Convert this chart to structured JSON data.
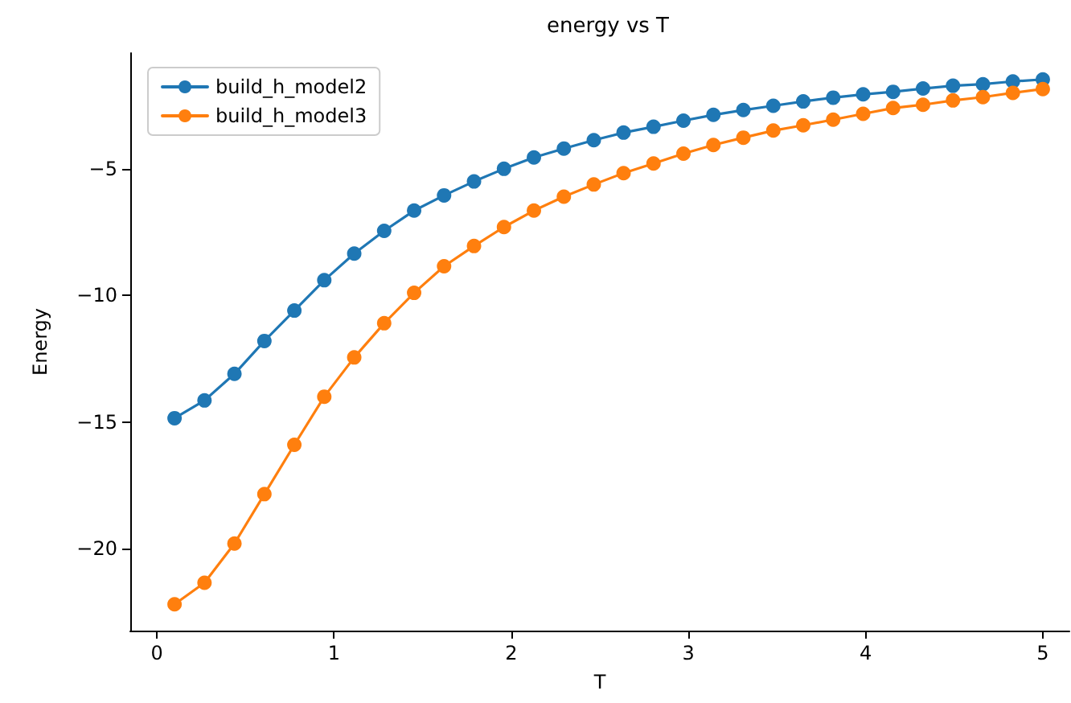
{
  "chart_data": {
    "type": "line",
    "title": "energy vs T",
    "xlabel": "T",
    "ylabel": "Energy",
    "x": [
      0.1,
      0.269,
      0.438,
      0.607,
      0.776,
      0.945,
      1.114,
      1.283,
      1.452,
      1.621,
      1.79,
      1.959,
      2.128,
      2.297,
      2.466,
      2.634,
      2.803,
      2.972,
      3.141,
      3.31,
      3.479,
      3.648,
      3.817,
      3.986,
      4.155,
      4.324,
      4.493,
      4.662,
      4.831,
      5.0
    ],
    "series": [
      {
        "name": "build_h_model2",
        "color": "#1f77b4",
        "values": [
          -14.85,
          -14.15,
          -13.1,
          -11.8,
          -10.6,
          -9.4,
          -8.35,
          -7.45,
          -6.65,
          -6.05,
          -5.5,
          -5.0,
          -4.55,
          -4.2,
          -3.87,
          -3.57,
          -3.34,
          -3.1,
          -2.87,
          -2.68,
          -2.51,
          -2.34,
          -2.19,
          -2.06,
          -1.96,
          -1.83,
          -1.72,
          -1.66,
          -1.55,
          -1.47
        ]
      },
      {
        "name": "build_h_model3",
        "color": "#ff7f0e",
        "values": [
          -22.2,
          -21.35,
          -19.8,
          -17.85,
          -15.9,
          -14.0,
          -12.45,
          -11.1,
          -9.9,
          -8.85,
          -8.05,
          -7.3,
          -6.65,
          -6.1,
          -5.62,
          -5.17,
          -4.79,
          -4.4,
          -4.06,
          -3.77,
          -3.49,
          -3.28,
          -3.06,
          -2.83,
          -2.6,
          -2.47,
          -2.3,
          -2.17,
          -2.0,
          -1.85
        ]
      }
    ],
    "xlim": [
      -0.15,
      5.15
    ],
    "xticks": [
      0,
      1,
      2,
      3,
      4,
      5
    ],
    "ylim": [
      -23.24,
      -0.43
    ],
    "yticks": [
      -20,
      -15,
      -10,
      -5
    ],
    "grid": false,
    "legend": "top left",
    "marker": "circle",
    "line_style": "solid"
  }
}
